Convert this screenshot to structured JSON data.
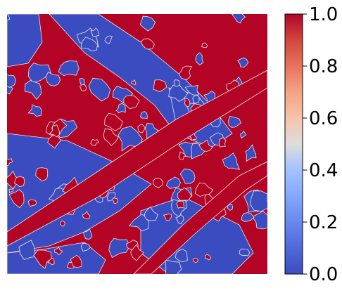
{
  "chart_data": {
    "type": "heatmap",
    "title": "",
    "xlabel": "",
    "ylabel": "",
    "colormap": "coolwarm",
    "value_range": [
      0.0,
      1.0
    ],
    "colorbar": {
      "ticks": [
        0.0,
        0.2,
        0.4,
        0.6,
        0.8,
        1.0
      ],
      "tick_labels": [
        "0.0",
        "0.2",
        "0.4",
        "0.6",
        "0.8",
        "1.0"
      ]
    },
    "axes_visible": false,
    "colors": {
      "low": "#3b4cc0",
      "mid": "#dddddd",
      "high": "#b40426"
    }
  }
}
